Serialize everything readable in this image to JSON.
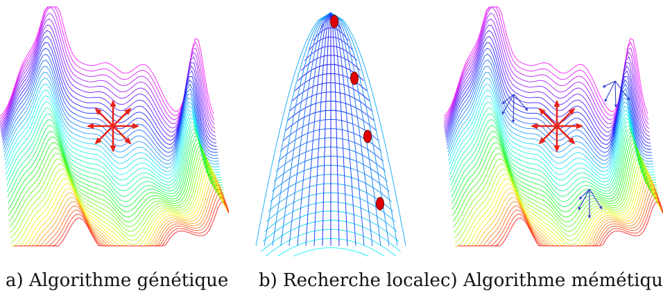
{
  "panels": [
    {
      "caption": "a) Algorithme génétique",
      "surface": "multimodal-landscape",
      "markers": "red-exploration-arrows"
    },
    {
      "caption": "b) Recherche locale",
      "surface": "unimodal-peak",
      "markers": "red-descent-points"
    },
    {
      "caption": "c) Algorithme mémétique",
      "surface": "multimodal-landscape",
      "markers": "red-arrows-with-blue-local-search"
    }
  ],
  "colors": {
    "arrows": "#e8231a",
    "points": "#e00000",
    "local_search": "#2c3cc8"
  }
}
